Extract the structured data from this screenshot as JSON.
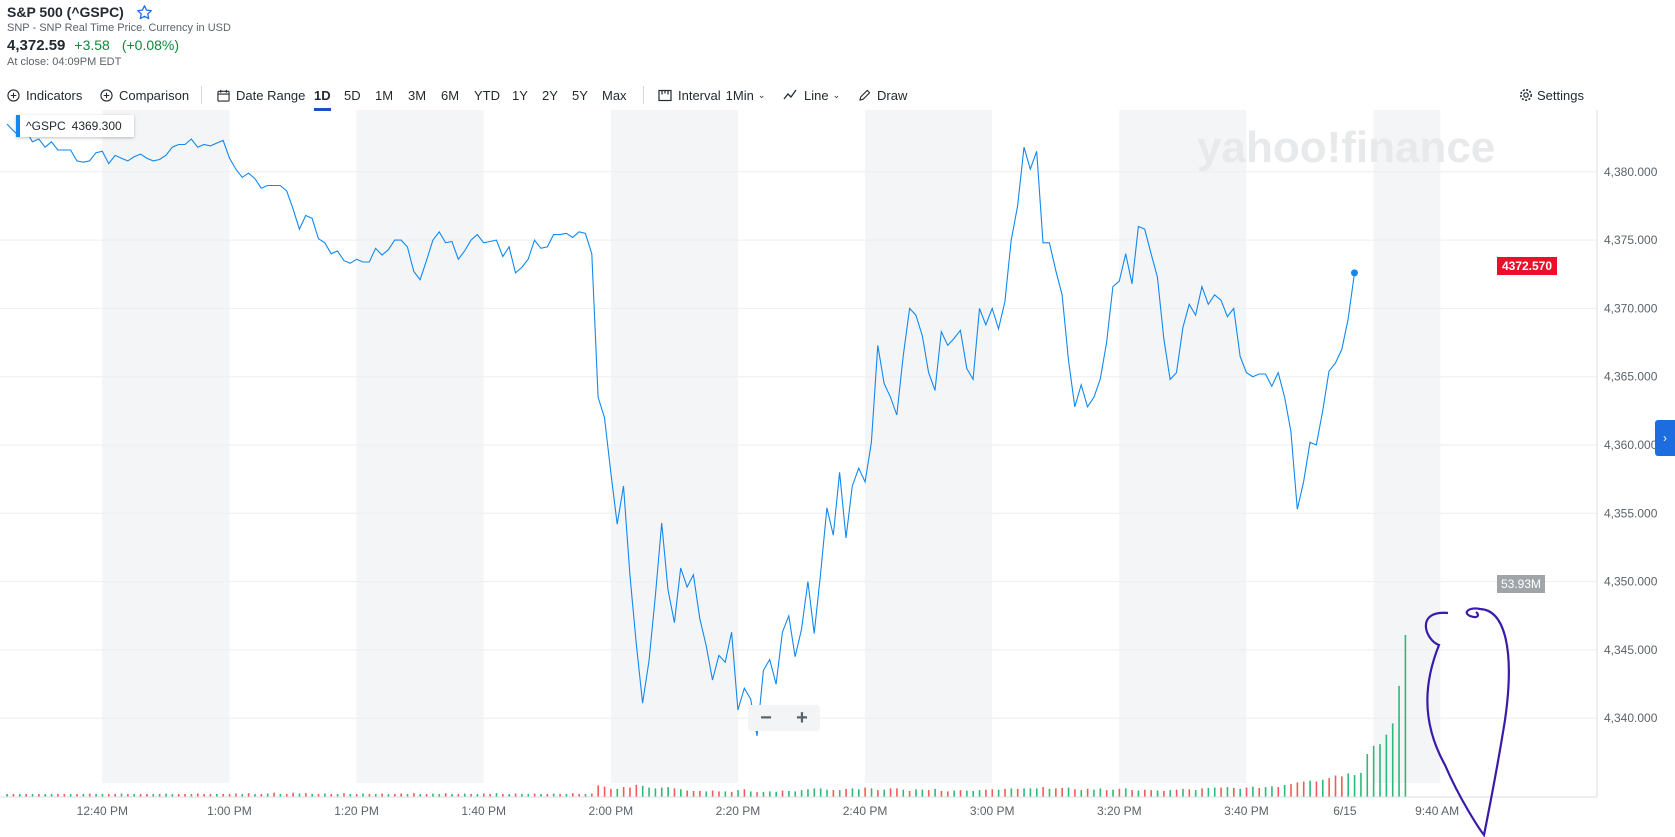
{
  "header": {
    "title": "S&P 500 (^GSPC)",
    "subtitle": "SNP - SNP Real Time Price. Currency in USD",
    "price": "4,372.59",
    "change": "+3.58",
    "change_pct": "(+0.08%)",
    "close_note": "At close: 04:09PM EDT"
  },
  "toolbar": {
    "indicators": "Indicators",
    "comparison": "Comparison",
    "date_range": "Date Range",
    "ranges": [
      "1D",
      "5D",
      "1M",
      "3M",
      "6M",
      "YTD",
      "1Y",
      "2Y",
      "5Y",
      "Max"
    ],
    "active_range": "1D",
    "interval_label": "Interval",
    "interval_value": "1Min",
    "chart_type": "Line",
    "draw": "Draw",
    "settings": "Settings"
  },
  "tooltip": {
    "symbol": "^GSPC",
    "value": "4369.300"
  },
  "price_tag": "4372.570",
  "volume_tag": "53.93M",
  "watermark": "yahoo!finance",
  "zoom": {
    "minus": "−",
    "plus": "+"
  },
  "colors": {
    "line": "#1189f0",
    "up": "#2bba7a",
    "down": "#f25a5a",
    "price_tag": "#eb0f29",
    "accent": "#1d4ec8"
  },
  "chart_data": {
    "type": "line",
    "x_tick_labels": [
      "12:40 PM",
      "1:00 PM",
      "1:20 PM",
      "1:40 PM",
      "2:00 PM",
      "2:20 PM",
      "2:40 PM",
      "3:00 PM",
      "3:20 PM",
      "3:40 PM",
      "6/15",
      "9:40 AM"
    ],
    "y_tick_labels": [
      "4,380.000",
      "4,375.000",
      "4,370.000",
      "4,365.000",
      "4,360.000",
      "4,355.000",
      "4,350.000",
      "4,345.000",
      "4,340.000"
    ],
    "ylim": [
      4338.5,
      4384.5
    ],
    "x_minutes_range": [
      -14,
      202
    ],
    "series": [
      {
        "values": [
          [
            0,
            4383.5
          ],
          [
            1,
            4383
          ],
          [
            2,
            4382.6
          ],
          [
            3,
            4383
          ],
          [
            4,
            4382.2
          ],
          [
            5,
            4382.4
          ],
          [
            6,
            4381.8
          ],
          [
            7,
            4382.2
          ],
          [
            8,
            4381.6
          ],
          [
            9,
            4381.6
          ],
          [
            10,
            4381.6
          ],
          [
            11,
            4380.8
          ],
          [
            12,
            4380.7
          ],
          [
            13,
            4380.8
          ],
          [
            14,
            4381.4
          ],
          [
            15,
            4381.5
          ],
          [
            16,
            4380.6
          ],
          [
            17,
            4381.2
          ],
          [
            18,
            4381
          ],
          [
            19,
            4380.8
          ],
          [
            20,
            4381.1
          ],
          [
            21,
            4381.3
          ],
          [
            22,
            4381
          ],
          [
            23,
            4380.8
          ],
          [
            24,
            4380.9
          ],
          [
            25,
            4381.2
          ],
          [
            26,
            4381.8
          ],
          [
            27,
            4382
          ],
          [
            28,
            4382
          ],
          [
            29,
            4382.4
          ],
          [
            30,
            4381.8
          ],
          [
            31,
            4382
          ],
          [
            32,
            4381.9
          ],
          [
            33,
            4382.1
          ],
          [
            34,
            4382.3
          ],
          [
            35,
            4381
          ],
          [
            36,
            4380.2
          ],
          [
            37,
            4379.6
          ],
          [
            38,
            4379.9
          ],
          [
            39,
            4379.5
          ],
          [
            40,
            4378.8
          ],
          [
            41,
            4379
          ],
          [
            42,
            4379
          ],
          [
            43,
            4379
          ],
          [
            44,
            4378.6
          ],
          [
            45,
            4377.3
          ],
          [
            46,
            4375.8
          ],
          [
            47,
            4376.8
          ],
          [
            48,
            4376.6
          ],
          [
            49,
            4375.1
          ],
          [
            50,
            4374.8
          ],
          [
            51,
            4374
          ],
          [
            52,
            4374.2
          ],
          [
            53,
            4373.5
          ],
          [
            54,
            4373.3
          ],
          [
            55,
            4373.6
          ],
          [
            56,
            4373.4
          ],
          [
            57,
            4373.4
          ],
          [
            58,
            4374.4
          ],
          [
            59,
            4373.9
          ],
          [
            60,
            4374.3
          ],
          [
            61,
            4375
          ],
          [
            62,
            4375
          ],
          [
            63,
            4374.5
          ],
          [
            64,
            4372.7
          ],
          [
            65,
            4372.1
          ],
          [
            66,
            4373.5
          ],
          [
            67,
            4375
          ],
          [
            68,
            4375.6
          ],
          [
            69,
            4374.8
          ],
          [
            70,
            4374.9
          ],
          [
            71,
            4373.6
          ],
          [
            72,
            4374.2
          ],
          [
            73,
            4375
          ],
          [
            74,
            4375.4
          ],
          [
            75,
            4374.8
          ],
          [
            76,
            4374.9
          ],
          [
            77,
            4375
          ],
          [
            78,
            4373.8
          ],
          [
            79,
            4374.5
          ],
          [
            80,
            4372.6
          ],
          [
            81,
            4373
          ],
          [
            82,
            4373.6
          ],
          [
            83,
            4375
          ],
          [
            84,
            4374.4
          ],
          [
            85,
            4374.5
          ],
          [
            86,
            4375.4
          ],
          [
            87,
            4375.4
          ],
          [
            88,
            4375.5
          ],
          [
            89,
            4375.2
          ],
          [
            90,
            4375.6
          ],
          [
            91,
            4375.5
          ],
          [
            92,
            4374
          ],
          [
            93,
            4363.5
          ],
          [
            94,
            4362
          ],
          [
            95,
            4358
          ],
          [
            96,
            4354.2
          ],
          [
            97,
            4357
          ],
          [
            98,
            4350.5
          ],
          [
            99,
            4345.5
          ],
          [
            100,
            4341.1
          ],
          [
            101,
            4344.2
          ],
          [
            102,
            4348.9
          ],
          [
            103,
            4354.3
          ],
          [
            104,
            4349.4
          ],
          [
            105,
            4347
          ],
          [
            106,
            4351
          ],
          [
            107,
            4349.6
          ],
          [
            108,
            4350.5
          ],
          [
            109,
            4347.3
          ],
          [
            110,
            4345.3
          ],
          [
            111,
            4342.8
          ],
          [
            112,
            4344.6
          ],
          [
            113,
            4344.1
          ],
          [
            114,
            4346.3
          ],
          [
            115,
            4340.6
          ],
          [
            116,
            4342.2
          ],
          [
            117,
            4341.4
          ],
          [
            118,
            4338.7
          ],
          [
            119,
            4343.5
          ],
          [
            120,
            4344.3
          ],
          [
            121,
            4342.5
          ],
          [
            122,
            4346.3
          ],
          [
            123,
            4347.5
          ],
          [
            124,
            4344.5
          ],
          [
            125,
            4346.5
          ],
          [
            126,
            4350
          ],
          [
            127,
            4346.2
          ],
          [
            128,
            4350.6
          ],
          [
            129,
            4355.4
          ],
          [
            130,
            4353.4
          ],
          [
            131,
            4358
          ],
          [
            132,
            4353.2
          ],
          [
            133,
            4357
          ],
          [
            134,
            4358.3
          ],
          [
            135,
            4357.3
          ],
          [
            136,
            4360.2
          ],
          [
            137,
            4367.3
          ],
          [
            138,
            4364.5
          ],
          [
            139,
            4363.5
          ],
          [
            140,
            4362.2
          ],
          [
            141,
            4366.5
          ],
          [
            142,
            4370
          ],
          [
            143,
            4369.5
          ],
          [
            144,
            4368
          ],
          [
            145,
            4365.3
          ],
          [
            146,
            4364
          ],
          [
            147,
            4368.3
          ],
          [
            148,
            4367.3
          ],
          [
            149,
            4367.8
          ],
          [
            150,
            4368.4
          ],
          [
            151,
            4365.6
          ],
          [
            152,
            4364.8
          ],
          [
            153,
            4370
          ],
          [
            154,
            4368.8
          ],
          [
            155,
            4370
          ],
          [
            156,
            4368.5
          ],
          [
            157,
            4370.5
          ],
          [
            158,
            4375
          ],
          [
            159,
            4377.5
          ],
          [
            160,
            4381.8
          ],
          [
            161,
            4380.2
          ],
          [
            162,
            4381.5
          ],
          [
            163,
            4374.8
          ],
          [
            164,
            4374.8
          ],
          [
            165,
            4372.8
          ],
          [
            166,
            4371
          ],
          [
            167,
            4366.2
          ],
          [
            168,
            4362.8
          ],
          [
            169,
            4364.4
          ],
          [
            170,
            4362.8
          ],
          [
            171,
            4363.5
          ],
          [
            172,
            4364.8
          ],
          [
            173,
            4367.5
          ],
          [
            174,
            4371.6
          ],
          [
            175,
            4372
          ],
          [
            176,
            4374
          ],
          [
            177,
            4371.8
          ],
          [
            178,
            4376
          ],
          [
            179,
            4375.8
          ],
          [
            180,
            4374
          ],
          [
            181,
            4372.3
          ],
          [
            182,
            4367.8
          ],
          [
            183,
            4364.8
          ],
          [
            184,
            4365.3
          ],
          [
            185,
            4368.6
          ],
          [
            186,
            4370.3
          ],
          [
            187,
            4369.5
          ],
          [
            188,
            4371.6
          ],
          [
            189,
            4370.3
          ],
          [
            190,
            4371
          ],
          [
            191,
            4370.6
          ],
          [
            192,
            4369.4
          ],
          [
            193,
            4370
          ],
          [
            194,
            4366.5
          ],
          [
            195,
            4365.3
          ],
          [
            196,
            4365
          ],
          [
            197,
            4365.2
          ],
          [
            198,
            4365.2
          ],
          [
            199,
            4364.3
          ],
          [
            200,
            4365.3
          ],
          [
            201,
            4363.5
          ],
          [
            202,
            4361
          ],
          [
            203,
            4355.3
          ],
          [
            204,
            4357.3
          ],
          [
            205,
            4360.2
          ],
          [
            206,
            4360
          ],
          [
            207,
            4362.5
          ],
          [
            208,
            4365.4
          ],
          [
            209,
            4366
          ],
          [
            210,
            4367
          ],
          [
            211,
            4369.2
          ],
          [
            212,
            4372.6
          ]
        ]
      }
    ],
    "volume": {
      "values": [
        0.7,
        0.6,
        0.7,
        0.6,
        0.7,
        0.5,
        0.6,
        0.7,
        0.6,
        0.5,
        0.7,
        0.6,
        0.5,
        0.8,
        0.6,
        0.7,
        0.5,
        0.6,
        0.8,
        0.6,
        0.7,
        0.6,
        0.5,
        0.7,
        0.6,
        0.8,
        0.6,
        0.5,
        0.7,
        0.6,
        0.8,
        0.6,
        0.7,
        0.5,
        0.6,
        0.7,
        0.8,
        0.6,
        0.9,
        0.7,
        0.6,
        0.8,
        1.0,
        0.7,
        0.6,
        1.0,
        0.8,
        0.9,
        0.7,
        0.6,
        0.8,
        0.7,
        0.6,
        0.9,
        0.7,
        0.6,
        0.8,
        0.7,
        0.6,
        0.8,
        0.7,
        0.6,
        0.8,
        0.7,
        0.9,
        0.6,
        0.7,
        0.8,
        0.6,
        0.9,
        0.7,
        0.6,
        0.8,
        0.7,
        0.6,
        0.8,
        0.7,
        0.9,
        0.6,
        0.7,
        0.8,
        0.6,
        0.7,
        0.8,
        0.6,
        0.7,
        0.8,
        0.6,
        0.7,
        0.9,
        0.6,
        0.7,
        0.8,
        2.7,
        2.4,
        1.9,
        1.9,
        2.3,
        2.2,
        2.8,
        2.6,
        2.2,
        2.0,
        2.2,
        2.3,
        2.0,
        1.8,
        1.5,
        1.4,
        1.4,
        1.3,
        1.5,
        1.3,
        1.3,
        1.2,
        1.6,
        1.8,
        1.3,
        1.1,
        1.2,
        1.3,
        1.2,
        1.5,
        1.4,
        1.3,
        1.6,
        1.8,
        2.0,
        2.0,
        1.7,
        1.6,
        1.6,
        1.9,
        2.0,
        1.8,
        2.2,
        2.0,
        1.6,
        1.7,
        2.0,
        2.0,
        1.7,
        1.4,
        1.8,
        1.7,
        1.6,
        1.9,
        1.4,
        1.3,
        1.5,
        1.6,
        1.5,
        1.4,
        1.6,
        1.7,
        1.8,
        1.7,
        1.9,
        2.0,
        1.9,
        2.0,
        2.0,
        2.0,
        2.3,
        1.9,
        2.0,
        2.1,
        2.2,
        1.8,
        1.6,
        1.9,
        1.7,
        2.0,
        1.6,
        1.7,
        1.9,
        2.0,
        1.6,
        1.5,
        1.7,
        1.6,
        1.5,
        1.4,
        1.6,
        1.7,
        1.9,
        1.8,
        1.6,
        2.0,
        2.1,
        2.2,
        2.2,
        2.3,
        2.1,
        1.9,
        2.2,
        2.4,
        2.1,
        2.3,
        2.5,
        2.3,
        2.8,
        3.0,
        3.4,
        3.6,
        3.8,
        3.6,
        4.0,
        4.4,
        5.0,
        4.8,
        5.5,
        5.1,
        5.6,
        10.0,
        11.9,
        12.3,
        14.5,
        24.5,
        37.0,
        53.93
      ],
      "up": [
        1,
        0,
        1,
        0,
        1,
        0,
        1,
        1,
        0,
        0,
        1,
        0,
        1,
        0,
        1,
        1,
        0,
        0,
        1,
        0,
        1,
        0,
        0,
        1,
        0,
        1,
        1,
        0,
        0,
        1,
        0,
        0,
        0,
        1,
        0,
        0,
        0,
        1,
        0,
        1,
        0,
        1,
        0,
        1,
        0,
        0,
        1,
        0,
        1,
        0,
        1,
        0,
        1,
        0,
        1,
        0,
        1,
        0,
        1,
        0,
        1,
        0,
        0,
        1,
        0,
        1,
        0,
        1,
        1,
        0,
        1,
        0,
        1,
        0,
        1,
        0,
        0,
        1,
        0,
        1,
        0,
        1,
        1,
        0,
        1,
        0,
        1,
        0,
        1,
        0,
        0,
        1,
        0,
        0,
        0,
        0,
        1,
        0,
        0,
        0,
        1,
        1,
        1,
        1,
        1,
        0,
        1,
        0,
        0,
        0,
        1,
        0,
        0,
        1,
        0,
        1,
        0,
        1,
        0,
        1,
        1,
        1,
        0,
        1,
        1,
        1,
        1,
        1,
        1,
        1,
        0,
        1,
        0,
        1,
        1,
        0,
        1,
        0,
        1,
        0,
        0,
        1,
        0,
        1,
        1,
        0,
        1,
        0,
        0,
        1,
        0,
        1,
        1,
        1,
        0,
        0,
        1,
        0,
        1,
        0,
        1,
        1,
        1,
        0,
        1,
        0,
        0,
        1,
        0,
        1,
        0,
        1,
        1,
        0,
        1,
        0,
        1,
        0,
        1,
        0,
        0,
        1,
        0,
        1,
        0,
        1,
        0,
        1,
        0,
        1,
        1,
        0,
        1,
        0,
        1,
        0,
        1,
        0,
        1,
        1,
        0,
        1,
        0,
        0,
        0,
        1,
        0,
        1,
        0,
        0,
        0,
        1,
        1,
        1,
        1,
        1,
        1,
        1,
        1,
        1,
        1
      ]
    }
  }
}
